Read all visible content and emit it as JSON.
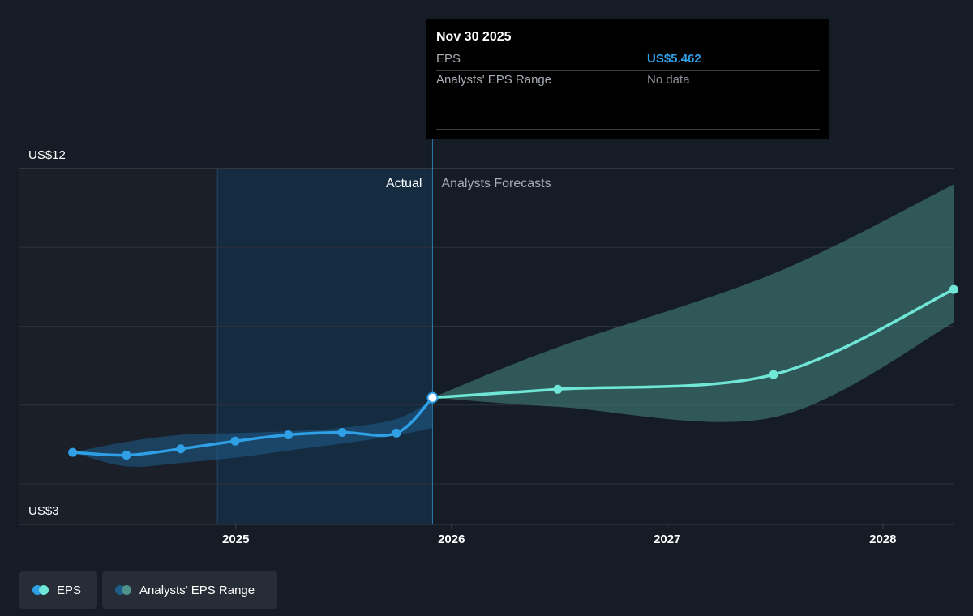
{
  "tooltip": {
    "date": "Nov 30 2025",
    "rows": [
      {
        "label": "EPS",
        "value": "US$5.462"
      },
      {
        "label": "Analysts' EPS Range",
        "value": "No data"
      }
    ]
  },
  "sections": {
    "actual": "Actual",
    "forecast": "Analysts Forecasts"
  },
  "legend": {
    "eps": "EPS",
    "range": "Analysts' EPS Range"
  },
  "colors": {
    "eps_actual": "#2f9fe6",
    "eps_forecast": "#6fe6d6",
    "range_forecast": "#3f7a74",
    "background": "#161c26"
  },
  "chart_data": {
    "type": "line",
    "y_tick_labels": [
      "US$12",
      "US$3"
    ],
    "x_tick_labels": [
      "2025",
      "2026",
      "2027",
      "2028"
    ],
    "ylim": [
      3,
      12
    ],
    "xlim": [
      "2024-01-01",
      "2028-05-01"
    ],
    "grid": true,
    "series": [
      {
        "name": "EPS",
        "segment": "actual",
        "x": [
          "2024-03-31",
          "2024-06-30",
          "2024-09-30",
          "2024-12-31",
          "2025-03-31",
          "2025-06-30",
          "2025-09-30",
          "2025-11-30"
        ],
        "y": [
          3.9,
          3.82,
          4.0,
          4.22,
          4.4,
          4.47,
          4.45,
          5.462
        ]
      },
      {
        "name": "EPS",
        "segment": "forecast",
        "x": [
          "2025-11-30",
          "2026-06-30",
          "2027-06-30",
          "2028-04-30"
        ],
        "y": [
          5.462,
          5.7,
          6.12,
          8.55
        ]
      }
    ],
    "ranges": [
      {
        "name": "Analysts' EPS Range",
        "segment": "actual",
        "x": [
          "2024-03-31",
          "2024-06-30",
          "2024-09-30",
          "2024-12-31",
          "2025-03-31",
          "2025-06-30",
          "2025-09-30",
          "2025-11-30"
        ],
        "low": [
          3.9,
          3.5,
          3.6,
          3.75,
          3.95,
          4.15,
          4.38,
          4.6
        ],
        "high": [
          3.9,
          4.2,
          4.4,
          4.45,
          4.5,
          4.6,
          4.85,
          5.4
        ]
      },
      {
        "name": "Analysts' EPS Range",
        "segment": "forecast",
        "x": [
          "2025-11-30",
          "2026-06-30",
          "2027-06-30",
          "2028-04-30"
        ],
        "low": [
          5.462,
          5.2,
          4.9,
          7.6
        ],
        "high": [
          5.462,
          6.9,
          9.0,
          11.55
        ]
      }
    ],
    "highlight": {
      "x": "2025-11-30",
      "y": 5.462
    }
  }
}
